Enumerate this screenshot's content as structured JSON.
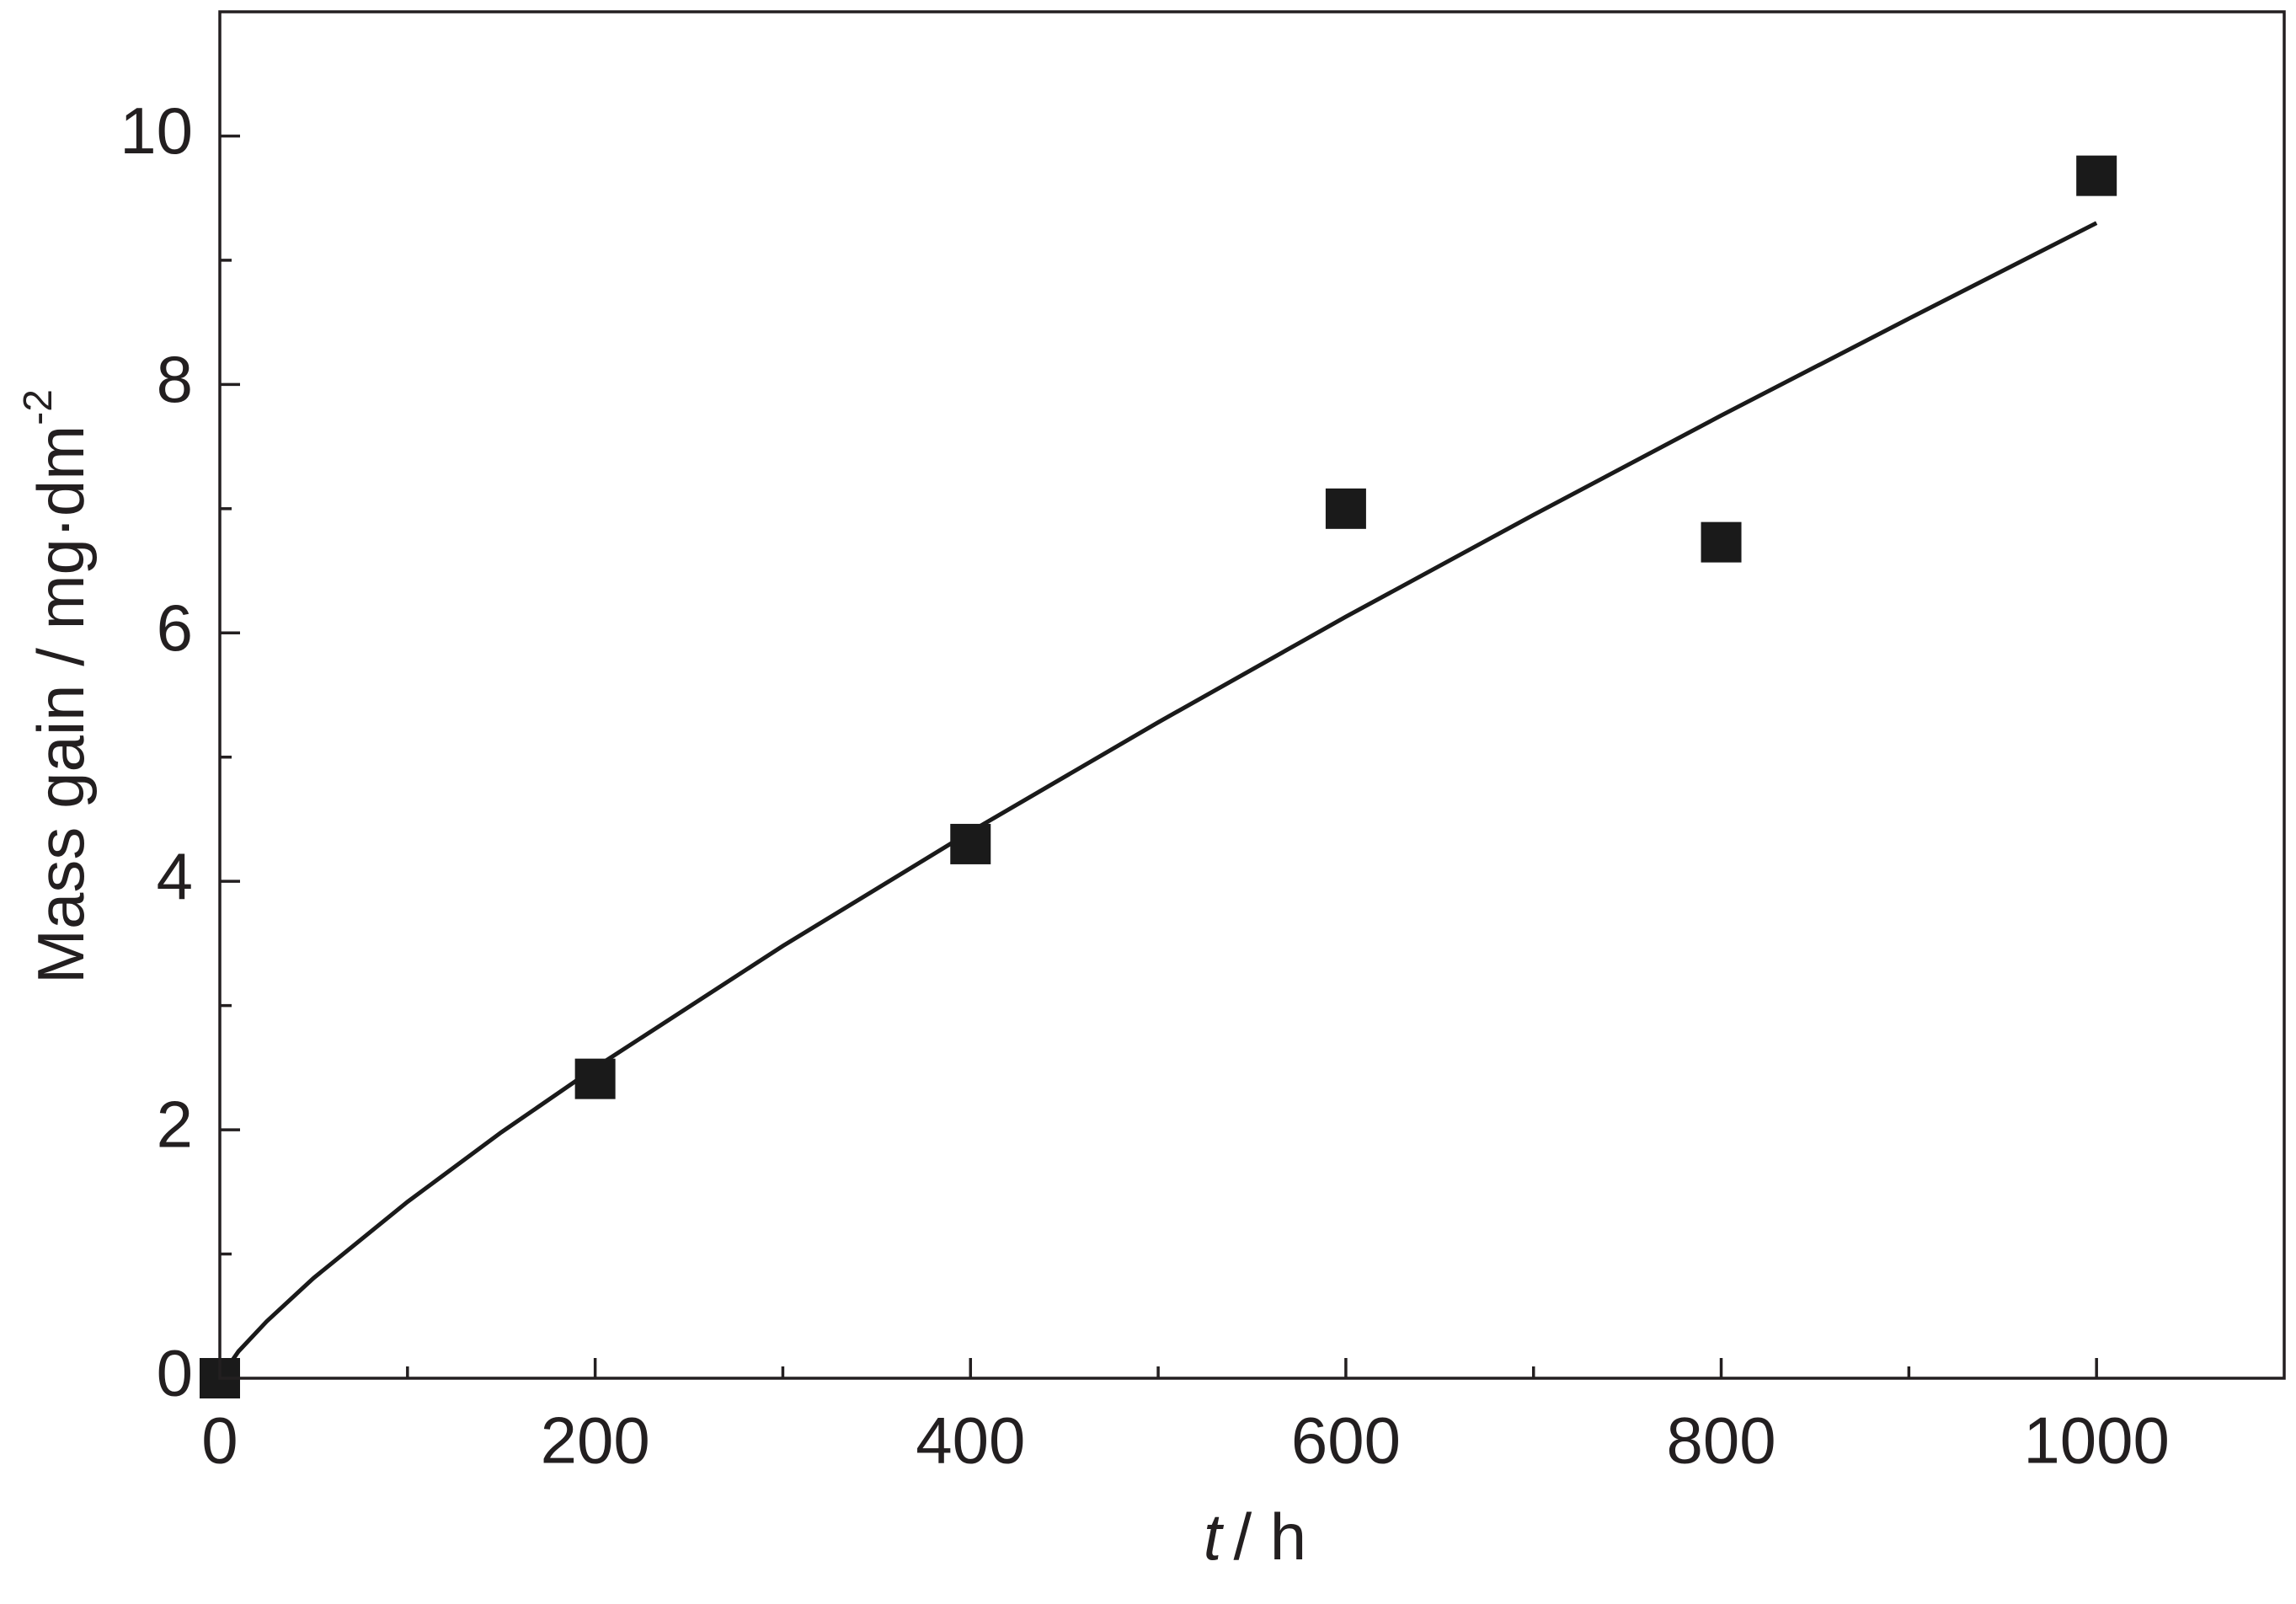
{
  "chart_data": {
    "type": "scatter",
    "xlabel": {
      "symbol": "t",
      "unit": "/ h"
    },
    "ylabel": {
      "text": "Mass gain / mg·dm",
      "sup": "-2"
    },
    "xlim": [
      0,
      1100
    ],
    "ylim": [
      0,
      11
    ],
    "xticks": [
      0,
      200,
      400,
      600,
      800,
      1000
    ],
    "yticks": [
      0,
      2,
      4,
      6,
      8,
      10
    ],
    "xticks_minor": [
      100,
      300,
      500,
      700,
      900
    ],
    "yticks_minor": [
      1,
      3,
      5,
      7,
      9
    ],
    "color": "#1a1a1a",
    "points": {
      "x": [
        0,
        200,
        400,
        600,
        800,
        1000
      ],
      "y": [
        0,
        2.41,
        4.3,
        7.0,
        6.73,
        9.68
      ]
    },
    "fit": {
      "x": [
        0,
        10,
        25,
        50,
        100,
        150,
        200,
        300,
        400,
        500,
        600,
        700,
        800,
        900,
        1000
      ],
      "y": [
        0,
        0.217,
        0.458,
        0.807,
        1.42,
        1.98,
        2.5,
        3.48,
        4.4,
        5.28,
        6.13,
        6.95,
        7.75,
        8.53,
        9.3
      ]
    }
  }
}
